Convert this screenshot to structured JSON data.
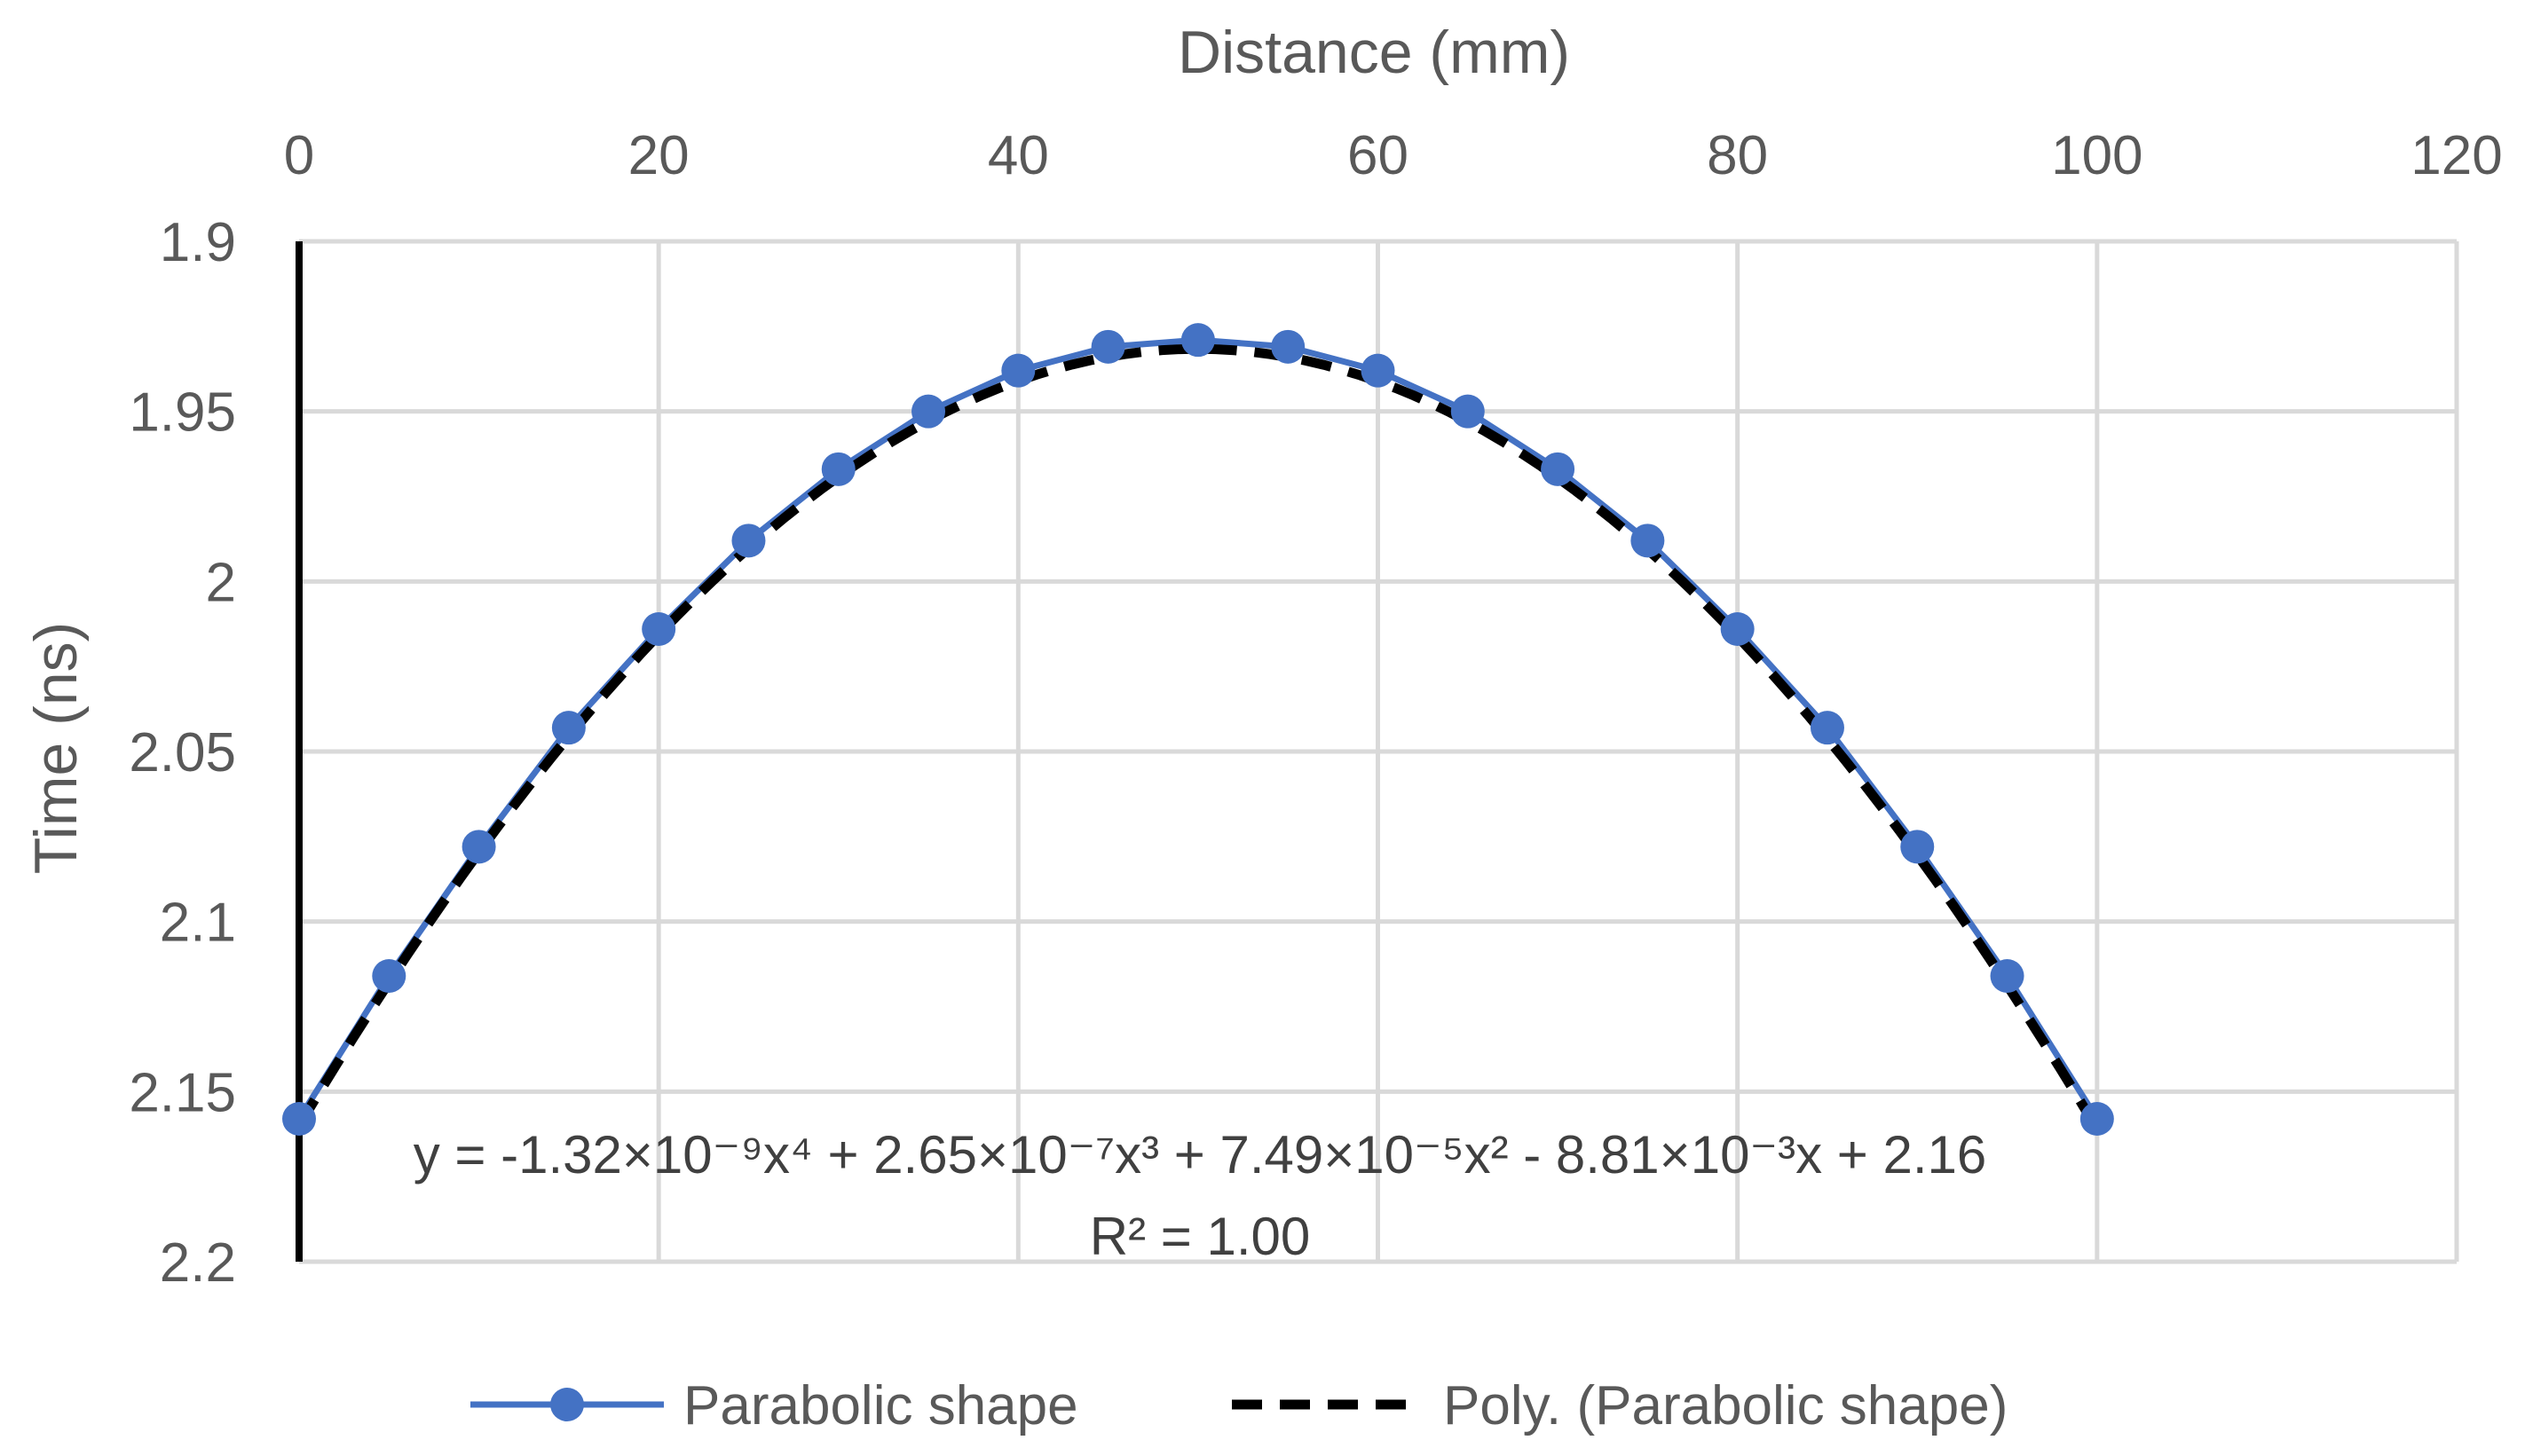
{
  "chart_data": {
    "type": "scatter",
    "title": "",
    "xlabel": "Distance (mm)",
    "ylabel": "Time (ns)",
    "x_axis_position": "top",
    "y_axis_inverted": true,
    "xlim": [
      0,
      120
    ],
    "ylim": [
      1.9,
      2.2
    ],
    "x_ticks": [
      "0",
      "20",
      "40",
      "60",
      "80",
      "100",
      "120"
    ],
    "x_tick_values": [
      0,
      20,
      40,
      60,
      80,
      100,
      120
    ],
    "y_ticks": [
      "1.9",
      "1.95",
      "2",
      "2.05",
      "2.1",
      "2.15",
      "2.2"
    ],
    "y_tick_values": [
      1.9,
      1.95,
      2.0,
      2.05,
      2.1,
      2.15,
      2.2
    ],
    "grid": true,
    "series": [
      {
        "name": "Parabolic shape",
        "style": "line-with-markers",
        "color": "#4472C4",
        "x": [
          0,
          5,
          10,
          15,
          20,
          25,
          30,
          35,
          40,
          45,
          50,
          55,
          60,
          65,
          70,
          75,
          80,
          85,
          90,
          95,
          100
        ],
        "y": [
          2.158,
          2.116,
          2.078,
          2.043,
          2.014,
          1.988,
          1.967,
          1.95,
          1.938,
          1.931,
          1.929,
          1.931,
          1.938,
          1.95,
          1.967,
          1.988,
          2.014,
          2.043,
          2.078,
          2.116,
          2.158
        ]
      },
      {
        "name": "Poly. (Parabolic shape)",
        "style": "dashed-trendline",
        "color": "#000000",
        "coefficients": [
          2.16,
          -0.00881,
          7.49e-05,
          2.65e-07,
          -1.32e-09
        ]
      }
    ],
    "annotation": {
      "equation": "y = -1.32×10⁻⁹x⁴ + 2.65×10⁻⁷x³ + 7.49×10⁻⁵x² - 8.81×10⁻³x + 2.16",
      "r_squared": "R² = 1.00"
    },
    "legend_position": "bottom"
  }
}
